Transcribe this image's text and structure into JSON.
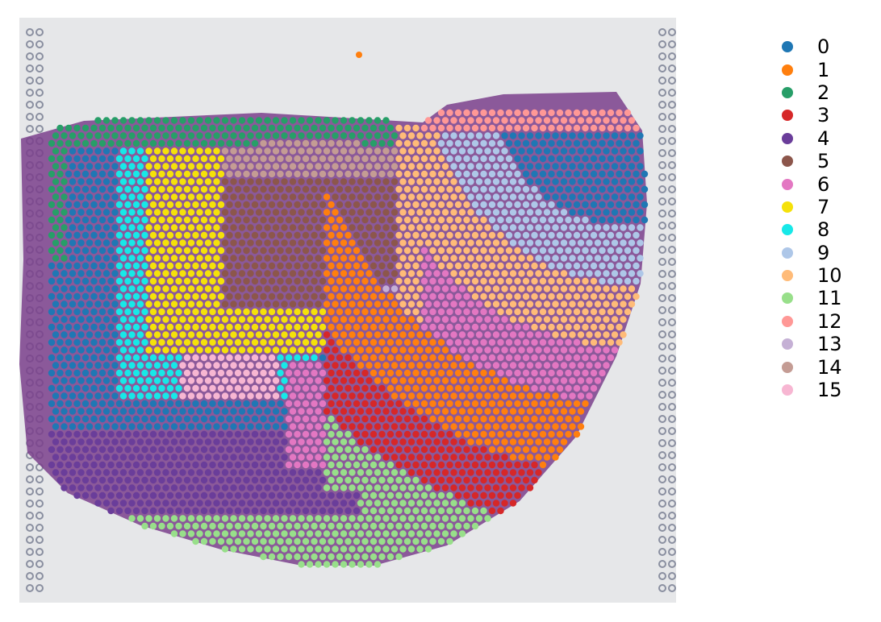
{
  "legend": {
    "items": [
      {
        "label": "0",
        "color": "#1f77b4"
      },
      {
        "label": "1",
        "color": "#ff7f0e"
      },
      {
        "label": "2",
        "color": "#279e68"
      },
      {
        "label": "3",
        "color": "#d62728"
      },
      {
        "label": "4",
        "color": "#6a3d9a"
      },
      {
        "label": "5",
        "color": "#8c564b"
      },
      {
        "label": "6",
        "color": "#e377c2"
      },
      {
        "label": "7",
        "color": "#f5e10a"
      },
      {
        "label": "8",
        "color": "#17e8e8"
      },
      {
        "label": "9",
        "color": "#aec7e8"
      },
      {
        "label": "10",
        "color": "#ffbb78"
      },
      {
        "label": "11",
        "color": "#98df8a"
      },
      {
        "label": "12",
        "color": "#ff9896"
      },
      {
        "label": "13",
        "color": "#c5b0d5"
      },
      {
        "label": "14",
        "color": "#c49c94"
      },
      {
        "label": "15",
        "color": "#f7b6d2"
      }
    ]
  },
  "colors": {
    "slide_background": "#e6e7e9",
    "tissue_stain": "#7a3f8c",
    "fiducial_spot": "#8a8fa0"
  }
}
